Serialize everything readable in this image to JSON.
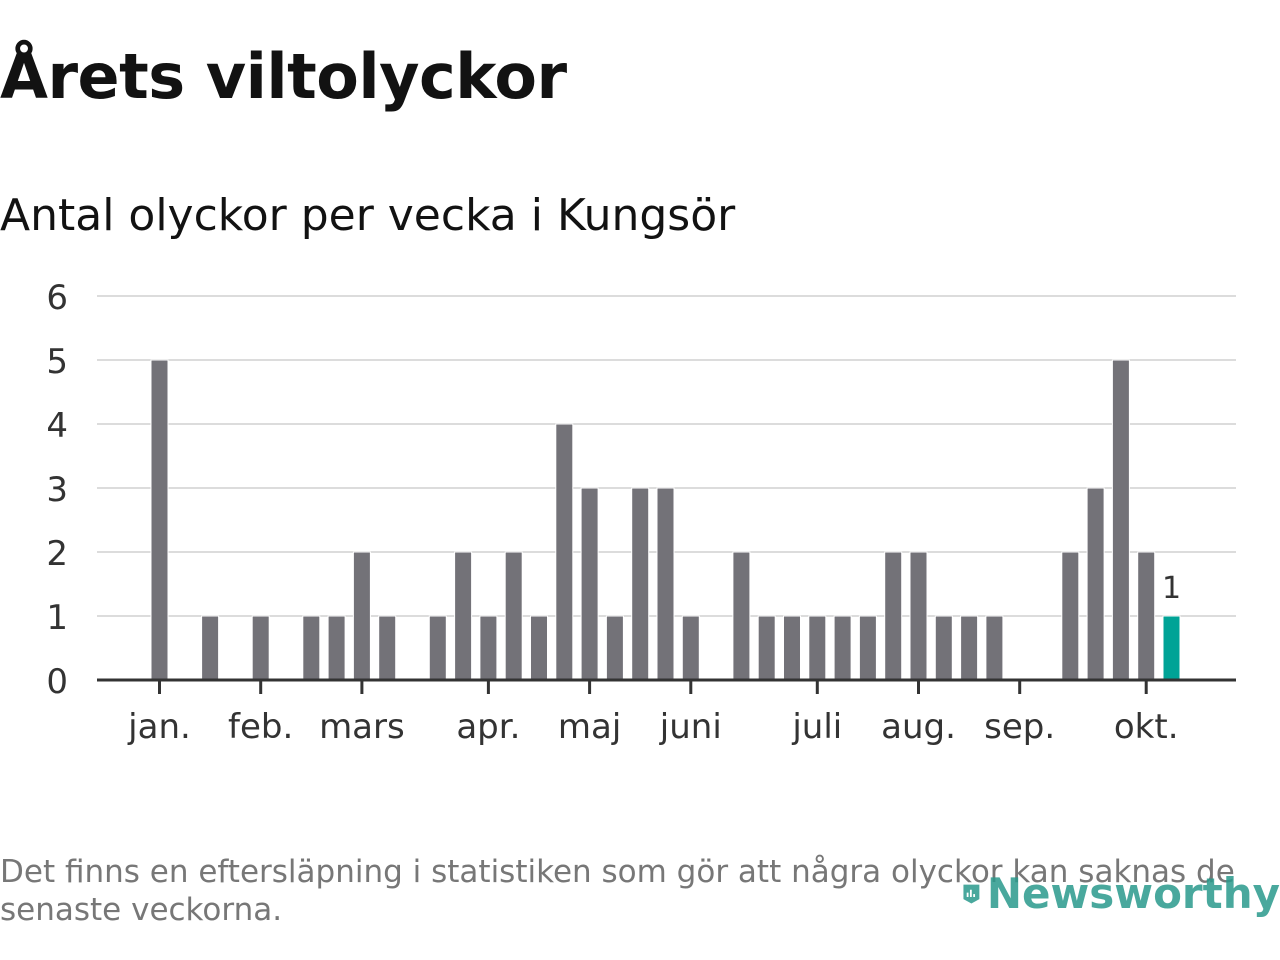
{
  "chart_data": {
    "type": "bar",
    "title": "Årets viltolyckor",
    "subtitle": "Antal olyckor per vecka i Kungsör",
    "xlabel": "",
    "ylabel": "",
    "ylim": [
      0,
      6
    ],
    "yticks": [
      "0",
      "1",
      "2",
      "3",
      "4",
      "5",
      "6"
    ],
    "grid": true,
    "week_start": 1,
    "values": [
      5,
      0,
      1,
      0,
      1,
      0,
      1,
      1,
      2,
      1,
      0,
      1,
      2,
      1,
      2,
      1,
      4,
      3,
      1,
      3,
      3,
      1,
      0,
      2,
      1,
      1,
      1,
      1,
      1,
      2,
      2,
      1,
      1,
      1,
      0,
      0,
      2,
      3,
      5,
      2,
      1
    ],
    "month_labels": [
      {
        "label": "jan.",
        "week": 1
      },
      {
        "label": "feb.",
        "week": 5
      },
      {
        "label": "mars",
        "week": 9
      },
      {
        "label": "apr.",
        "week": 14
      },
      {
        "label": "maj",
        "week": 18
      },
      {
        "label": "juni",
        "week": 22
      },
      {
        "label": "juli",
        "week": 27
      },
      {
        "label": "aug.",
        "week": 31
      },
      {
        "label": "sep.",
        "week": 35
      },
      {
        "label": "okt.",
        "week": 40
      }
    ],
    "highlight": {
      "week": 41,
      "value": 1,
      "label": "1",
      "color": "#00a396"
    },
    "bar_color": "#737278",
    "grid_color": "#dcdcdc",
    "axis_color": "#333333"
  },
  "footnote": "Det finns en eftersläpning i statistiken som gör att några olyckor kan saknas de senaste veckorna.",
  "logo": {
    "text": "Newsworthy",
    "icon": "newsworthy-bar-icon",
    "color": "#2a9a8c"
  }
}
